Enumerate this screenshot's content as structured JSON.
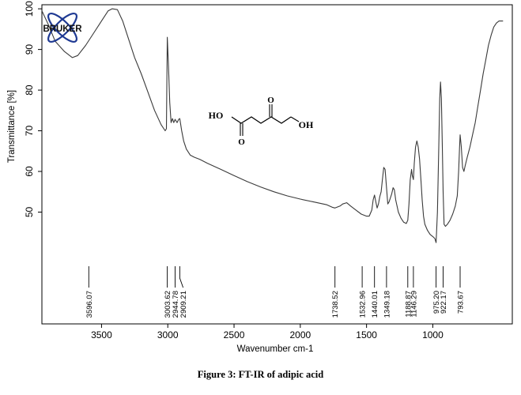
{
  "figure": {
    "caption": "Figure 3: FT-IR of adipic acid",
    "logo_text": "BRUKER",
    "logo_color": "#1f3a93"
  },
  "molecule": {
    "left_group": "HO",
    "right_group": "OH",
    "left_oxygen": "O",
    "right_oxygen": "O"
  },
  "chart_data": {
    "type": "line",
    "title": "",
    "xlabel": "Wavenumber cm-1",
    "ylabel": "Transmittance [%]",
    "x_reversed": true,
    "xlim": [
      3950,
      400
    ],
    "ylim": [
      22.5,
      101
    ],
    "grid": false,
    "x_ticks": [
      3500,
      3000,
      2500,
      2000,
      1500,
      1000
    ],
    "y_ticks": [
      50,
      60,
      70,
      80,
      90,
      100
    ],
    "line_color": "#3a3a3a",
    "series": [
      {
        "points": [
          [
            3950,
            99.5
          ],
          [
            3900,
            96
          ],
          [
            3850,
            92
          ],
          [
            3780,
            89.5
          ],
          [
            3720,
            88
          ],
          [
            3680,
            88.5
          ],
          [
            3620,
            91
          ],
          [
            3560,
            94
          ],
          [
            3500,
            97
          ],
          [
            3450,
            99.5
          ],
          [
            3420,
            100
          ],
          [
            3380,
            99.8
          ],
          [
            3340,
            97
          ],
          [
            3300,
            93
          ],
          [
            3250,
            88
          ],
          [
            3200,
            84
          ],
          [
            3150,
            79.5
          ],
          [
            3100,
            75
          ],
          [
            3050,
            71.5
          ],
          [
            3020,
            70
          ],
          [
            3010,
            70.5
          ],
          [
            3003.62,
            93
          ],
          [
            2995,
            86
          ],
          [
            2985,
            77
          ],
          [
            2975,
            72
          ],
          [
            2965,
            73
          ],
          [
            2955,
            72
          ],
          [
            2944.78,
            72.8
          ],
          [
            2930,
            72
          ],
          [
            2918,
            72.8
          ],
          [
            2909.21,
            73
          ],
          [
            2895,
            70
          ],
          [
            2880,
            67.5
          ],
          [
            2860,
            65.5
          ],
          [
            2830,
            64
          ],
          [
            2800,
            63.5
          ],
          [
            2760,
            63
          ],
          [
            2700,
            62
          ],
          [
            2600,
            60.5
          ],
          [
            2500,
            59
          ],
          [
            2400,
            57.5
          ],
          [
            2300,
            56.2
          ],
          [
            2200,
            55
          ],
          [
            2100,
            54
          ],
          [
            2000,
            53.2
          ],
          [
            1900,
            52.5
          ],
          [
            1800,
            51.8
          ],
          [
            1760,
            51.2
          ],
          [
            1738.52,
            51
          ],
          [
            1700,
            51.5
          ],
          [
            1680,
            52
          ],
          [
            1650,
            52.3
          ],
          [
            1620,
            51.5
          ],
          [
            1580,
            50.5
          ],
          [
            1540,
            49.5
          ],
          [
            1500,
            49
          ],
          [
            1480,
            49
          ],
          [
            1460,
            50.5
          ],
          [
            1450,
            53
          ],
          [
            1440.01,
            54.2
          ],
          [
            1430,
            52.5
          ],
          [
            1420,
            51
          ],
          [
            1410,
            52
          ],
          [
            1400,
            53.8
          ],
          [
            1390,
            55
          ],
          [
            1380,
            58
          ],
          [
            1370,
            61
          ],
          [
            1360,
            60.5
          ],
          [
            1349.18,
            56
          ],
          [
            1340,
            52
          ],
          [
            1330,
            52.5
          ],
          [
            1310,
            54.5
          ],
          [
            1300,
            56
          ],
          [
            1290,
            55.5
          ],
          [
            1280,
            53
          ],
          [
            1260,
            50
          ],
          [
            1240,
            48.5
          ],
          [
            1220,
            47.5
          ],
          [
            1200,
            47.2
          ],
          [
            1188.87,
            48
          ],
          [
            1180,
            52
          ],
          [
            1170,
            58
          ],
          [
            1160,
            60.5
          ],
          [
            1155,
            59
          ],
          [
            1146.29,
            58
          ],
          [
            1140,
            62
          ],
          [
            1130,
            66
          ],
          [
            1120,
            67.5
          ],
          [
            1110,
            66
          ],
          [
            1100,
            63
          ],
          [
            1090,
            58
          ],
          [
            1080,
            53
          ],
          [
            1070,
            49
          ],
          [
            1060,
            47
          ],
          [
            1040,
            45.5
          ],
          [
            1020,
            44.5
          ],
          [
            1000,
            44
          ],
          [
            985,
            43.5
          ],
          [
            975.2,
            42.5
          ],
          [
            965,
            50
          ],
          [
            955,
            66
          ],
          [
            948,
            78
          ],
          [
            942,
            82
          ],
          [
            935,
            78
          ],
          [
            928,
            66
          ],
          [
            922.17,
            55
          ],
          [
            915,
            47
          ],
          [
            905,
            46.5
          ],
          [
            890,
            47
          ],
          [
            870,
            48
          ],
          [
            850,
            49.5
          ],
          [
            830,
            51.5
          ],
          [
            815,
            54
          ],
          [
            805,
            60
          ],
          [
            798,
            66
          ],
          [
            793.67,
            69
          ],
          [
            785,
            66
          ],
          [
            775,
            61
          ],
          [
            765,
            60
          ],
          [
            755,
            61.5
          ],
          [
            740,
            63.5
          ],
          [
            720,
            66
          ],
          [
            700,
            69
          ],
          [
            680,
            72
          ],
          [
            660,
            76
          ],
          [
            640,
            80
          ],
          [
            620,
            84
          ],
          [
            600,
            87.5
          ],
          [
            580,
            91
          ],
          [
            560,
            93.5
          ],
          [
            540,
            95.5
          ],
          [
            520,
            96.5
          ],
          [
            500,
            97
          ],
          [
            470,
            97
          ]
        ]
      }
    ],
    "peak_labels": [
      {
        "x": 3596.07,
        "label": "3596.07",
        "bend_to": 3596.07
      },
      {
        "x": 3003.62,
        "label": "3003.62",
        "bend_to": 3003.62
      },
      {
        "x": 2944.78,
        "label": "2944.78",
        "bend_to": 2944.78
      },
      {
        "x": 2909.21,
        "label": "2909.21",
        "bend_to": 2909.21
      },
      {
        "x": 1738.52,
        "label": "1738.52",
        "bend_to": 1738.52
      },
      {
        "x": 1532.96,
        "label": "1532.96",
        "bend_to": 1532.96
      },
      {
        "x": 1440.01,
        "label": "1440.01",
        "bend_to": 1440.01
      },
      {
        "x": 1349.18,
        "label": "1349.18",
        "bend_to": 1349.18
      },
      {
        "x": 1188.87,
        "label": "1188.87",
        "bend_to": 1188.87
      },
      {
        "x": 1146.29,
        "label": "1146.29",
        "bend_to": 1146.29
      },
      {
        "x": 975.2,
        "label": "975.20",
        "bend_to": 975.2
      },
      {
        "x": 922.17,
        "label": "922.17",
        "bend_to": 922.17
      },
      {
        "x": 793.67,
        "label": "793.67",
        "bend_to": 793.67
      }
    ]
  }
}
